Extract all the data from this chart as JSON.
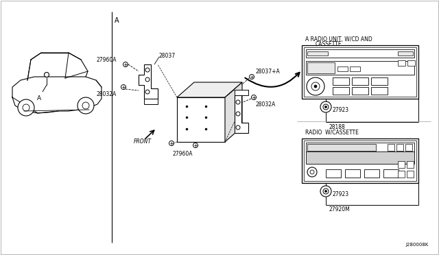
{
  "bg_color": "#ffffff",
  "line_color": "#000000",
  "fig_width": 6.4,
  "fig_height": 3.72,
  "ref_code": "J280008K",
  "labels": {
    "A_section": "A",
    "front": "FRONT",
    "radio_cd_title_1": "A RADIO UNIT, W/CD AND",
    "radio_cd_title_2": "CASSETTE",
    "radio_cassette_title": "RADIO  W/CASSETTE",
    "part_27960A_top": "27960A",
    "part_28037": "28037",
    "part_28032A_left": "28032A",
    "part_28037A": "28037+A",
    "part_27960A_bot": "27960A",
    "part_28032A_right": "28032A",
    "part_27923_top": "27923",
    "part_28188": "28188",
    "part_27923_bot": "27923",
    "part_27920M": "27920M"
  }
}
